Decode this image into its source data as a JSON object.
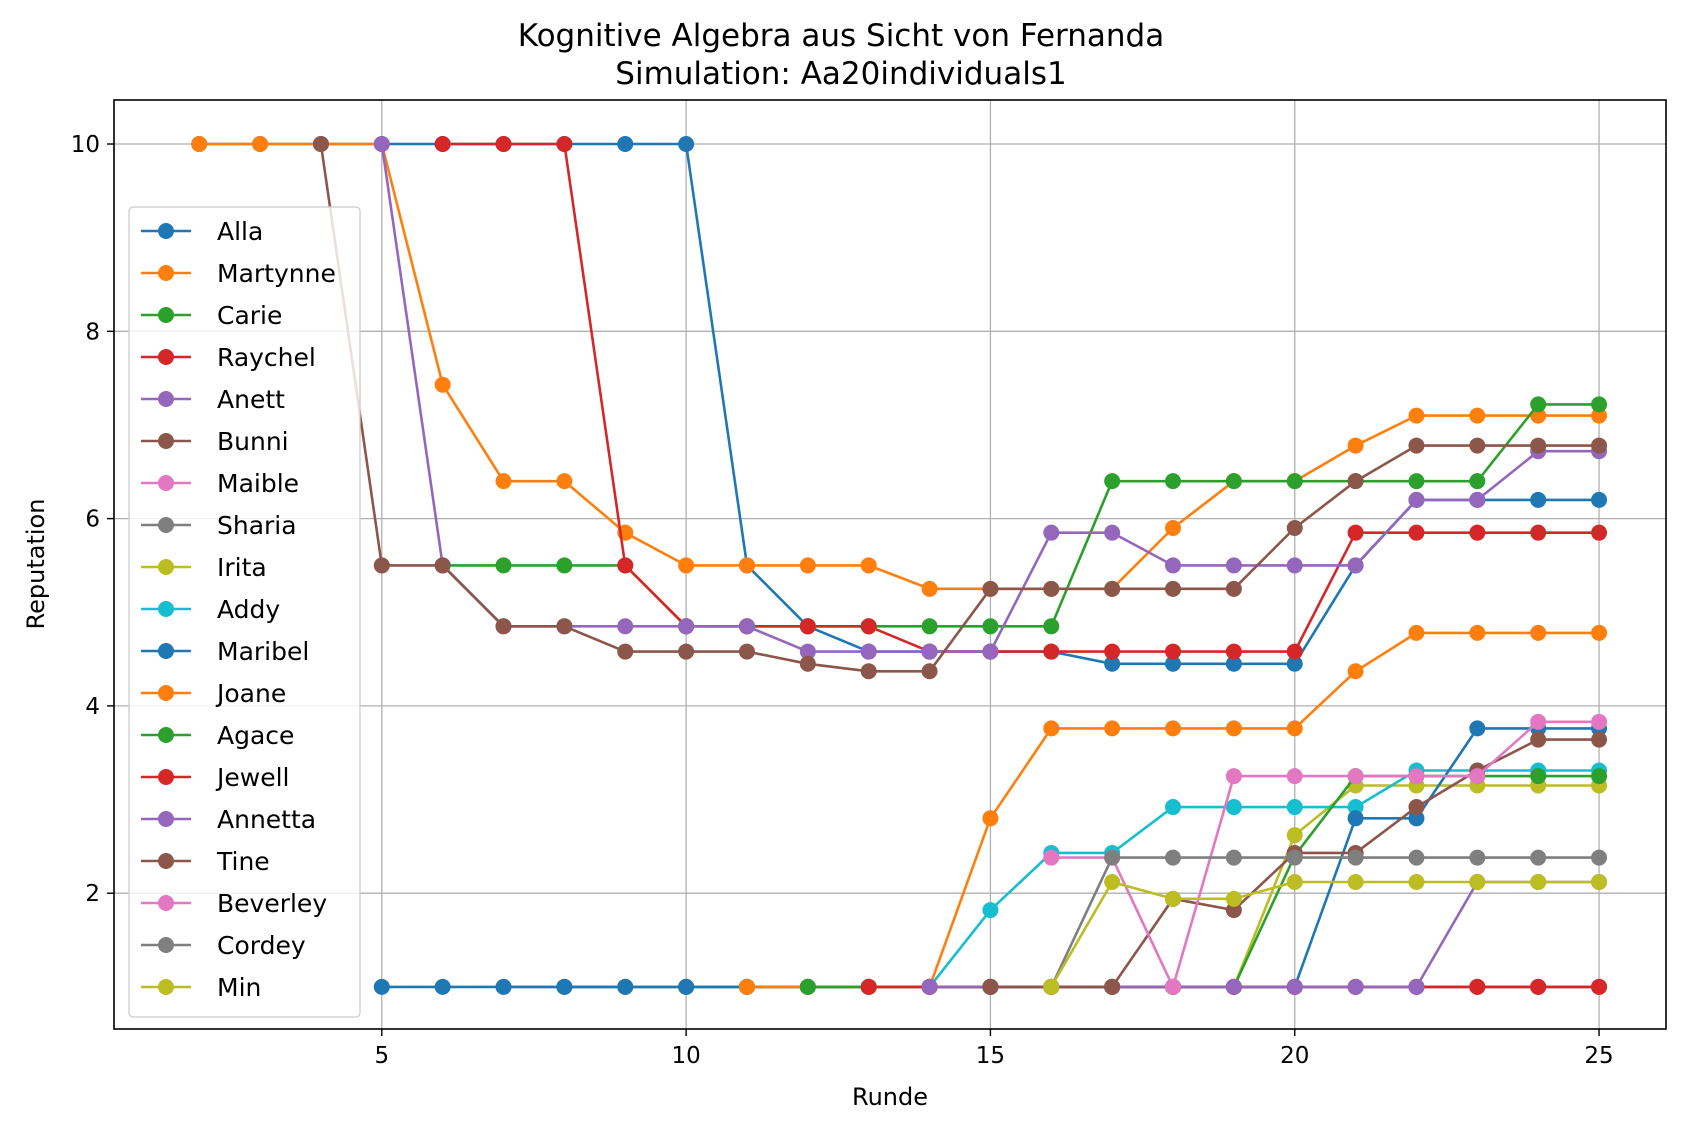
{
  "chart_data": {
    "type": "line",
    "title": "Kognitive Algebra aus Sicht von Fernanda",
    "subtitle": "Simulation: Aa20individuals1",
    "xlabel": "Runde",
    "ylabel": "Reputation",
    "xlim": [
      0.6,
      26.1
    ],
    "ylim": [
      0.55,
      10.47
    ],
    "xticks": [
      5,
      10,
      15,
      20,
      25
    ],
    "yticks": [
      2,
      4,
      6,
      8,
      10
    ],
    "grid": true,
    "legend_position": "left",
    "series": [
      {
        "name": "Alla",
        "color": "#1f77b4",
        "x": [
          2,
          3,
          4,
          5,
          6,
          7,
          8,
          9,
          10,
          11,
          12,
          13,
          14,
          15,
          16,
          17,
          18,
          19,
          20,
          21,
          22,
          23,
          24,
          25
        ],
        "values": [
          10,
          10,
          10,
          10,
          10,
          10,
          10,
          10,
          10,
          5.5,
          4.85,
          4.58,
          4.58,
          4.58,
          4.58,
          4.45,
          4.45,
          4.45,
          4.45,
          5.5,
          6.2,
          6.2,
          6.2,
          6.2
        ]
      },
      {
        "name": "Martynne",
        "color": "#ff7f0e",
        "x": [
          2,
          3,
          4,
          5,
          6,
          7,
          8,
          9,
          10,
          11,
          12,
          13,
          14,
          15,
          16,
          17,
          18,
          19,
          20,
          21,
          22,
          23,
          24,
          25
        ],
        "values": [
          10,
          10,
          10,
          10,
          7.43,
          6.4,
          6.4,
          5.85,
          5.5,
          5.5,
          5.5,
          5.5,
          5.25,
          5.25,
          5.25,
          5.25,
          5.9,
          6.4,
          6.4,
          6.78,
          7.1,
          7.1,
          7.1,
          7.1
        ]
      },
      {
        "name": "Carie",
        "color": "#2ca02c",
        "x": [
          6,
          7,
          8,
          9,
          10,
          11,
          12,
          13,
          14,
          15,
          16,
          17,
          18,
          19,
          20,
          21,
          22,
          23,
          24,
          25
        ],
        "values": [
          5.5,
          5.5,
          5.5,
          5.5,
          4.85,
          4.85,
          4.85,
          4.85,
          4.85,
          4.85,
          4.85,
          6.4,
          6.4,
          6.4,
          6.4,
          6.4,
          6.4,
          6.4,
          7.22,
          7.22
        ]
      },
      {
        "name": "Raychel",
        "color": "#d62728",
        "x": [
          6,
          7,
          8,
          9,
          10,
          11,
          12,
          13,
          14,
          15,
          16,
          17,
          18,
          19,
          20,
          21,
          22,
          23,
          24,
          25
        ],
        "values": [
          10,
          10,
          10,
          5.5,
          4.85,
          4.85,
          4.85,
          4.85,
          4.58,
          4.58,
          4.58,
          4.58,
          4.58,
          4.58,
          4.58,
          5.85,
          5.85,
          5.85,
          5.85,
          5.85
        ]
      },
      {
        "name": "Anett",
        "color": "#9467bd",
        "x": [
          5,
          6,
          7,
          8,
          9,
          10,
          11,
          12,
          13,
          14,
          15,
          16,
          17,
          18,
          19,
          20,
          21,
          22,
          23,
          24,
          25
        ],
        "values": [
          10,
          5.5,
          4.85,
          4.85,
          4.85,
          4.85,
          4.85,
          4.58,
          4.58,
          4.58,
          4.58,
          5.85,
          5.85,
          5.5,
          5.5,
          5.5,
          5.5,
          6.2,
          6.2,
          6.72,
          6.72
        ]
      },
      {
        "name": "Bunni",
        "color": "#8c564b",
        "x": [
          4,
          5,
          6,
          7,
          8,
          9,
          10,
          11,
          12,
          13,
          14,
          15,
          16,
          17,
          18,
          19,
          20,
          21,
          22,
          23,
          24,
          25
        ],
        "values": [
          10,
          5.5,
          5.5,
          4.85,
          4.85,
          4.58,
          4.58,
          4.58,
          4.45,
          4.37,
          4.37,
          5.25,
          5.25,
          5.25,
          5.25,
          5.25,
          5.9,
          6.4,
          6.78,
          6.78,
          6.78,
          6.78
        ]
      },
      {
        "name": "Maible",
        "color": "#e377c2",
        "x": [
          7,
          8,
          9,
          10,
          11,
          12,
          13,
          14,
          15,
          16,
          17,
          18,
          19,
          20,
          21,
          22,
          23,
          24,
          25
        ],
        "values": [
          1,
          1,
          1,
          1,
          1,
          1,
          1,
          1,
          1,
          1,
          1,
          1,
          1,
          1,
          1,
          1,
          1,
          1,
          1
        ]
      },
      {
        "name": "Sharia",
        "color": "#7f7f7f",
        "x": [
          8,
          9,
          10,
          11,
          12,
          13,
          14,
          15,
          16,
          17,
          18,
          19,
          20,
          21,
          22,
          23,
          24,
          25
        ],
        "values": [
          1,
          1,
          1,
          1,
          1,
          1,
          1,
          1,
          1,
          1,
          1,
          1,
          1,
          1,
          1,
          1,
          1,
          1
        ]
      },
      {
        "name": "Irita",
        "color": "#bcbd22",
        "x": [
          9,
          10,
          11,
          12,
          13,
          14,
          15,
          16,
          17,
          18,
          19,
          20,
          21,
          22,
          23,
          24,
          25
        ],
        "values": [
          1,
          1,
          1,
          1,
          1,
          1,
          1,
          1,
          1,
          1,
          1,
          2.62,
          3.15,
          3.15,
          3.15,
          3.15,
          3.15
        ]
      },
      {
        "name": "Addy",
        "color": "#17becf",
        "x": [
          10,
          11,
          12,
          13,
          14,
          15,
          16,
          17,
          18,
          19,
          20,
          21,
          22,
          23,
          24,
          25
        ],
        "values": [
          1,
          1,
          1,
          1,
          1,
          1.82,
          2.43,
          2.43,
          2.92,
          2.92,
          2.92,
          2.92,
          3.31,
          3.31,
          3.31,
          3.31
        ]
      },
      {
        "name": "Maribel",
        "color": "#1f77b4",
        "x": [
          5,
          6,
          7,
          8,
          9,
          10,
          11,
          12,
          13,
          14,
          15,
          16,
          17,
          18,
          19,
          20,
          21,
          22,
          23,
          24,
          25
        ],
        "values": [
          1,
          1,
          1,
          1,
          1,
          1,
          1,
          1,
          1,
          1,
          1,
          1,
          1,
          1,
          1,
          1,
          2.8,
          2.8,
          3.76,
          3.76,
          3.76
        ]
      },
      {
        "name": "Joane",
        "color": "#ff7f0e",
        "x": [
          11,
          12,
          13,
          14,
          15,
          16,
          17,
          18,
          19,
          20,
          21,
          22,
          23,
          24,
          25
        ],
        "values": [
          1,
          1,
          1,
          1,
          2.8,
          3.76,
          3.76,
          3.76,
          3.76,
          3.76,
          4.37,
          4.78,
          4.78,
          4.78,
          4.78
        ]
      },
      {
        "name": "Agace",
        "color": "#2ca02c",
        "x": [
          12,
          13,
          14,
          15,
          16,
          17,
          18,
          19,
          20,
          21,
          22,
          23,
          24,
          25
        ],
        "values": [
          1,
          1,
          1,
          1,
          1,
          1,
          1,
          1,
          2.4,
          3.25,
          3.25,
          3.25,
          3.25,
          3.25
        ]
      },
      {
        "name": "Jewell",
        "color": "#d62728",
        "x": [
          13,
          14,
          15,
          16,
          17,
          18,
          19,
          20,
          21,
          22,
          23,
          24,
          25
        ],
        "values": [
          1,
          1,
          1,
          1,
          1,
          1,
          1,
          1,
          1,
          1,
          1,
          1,
          1
        ]
      },
      {
        "name": "Annetta",
        "color": "#9467bd",
        "x": [
          14,
          15,
          16,
          17,
          18,
          19,
          20,
          21,
          22,
          23,
          24,
          25
        ],
        "values": [
          1,
          1,
          1,
          1,
          1,
          1,
          1,
          1,
          1,
          2.12,
          2.12,
          2.12
        ]
      },
      {
        "name": "Tine",
        "color": "#8c564b",
        "x": [
          15,
          16,
          17,
          18,
          19,
          20,
          21,
          22,
          23,
          24,
          25
        ],
        "values": [
          1,
          1,
          1,
          1.94,
          1.82,
          2.43,
          2.43,
          2.92,
          3.31,
          3.64,
          3.64
        ]
      },
      {
        "name": "Beverley",
        "color": "#e377c2",
        "x": [
          16,
          17,
          18,
          19,
          20,
          21,
          22,
          23,
          24,
          25
        ],
        "values": [
          2.38,
          2.38,
          1,
          3.25,
          3.25,
          3.25,
          3.25,
          3.25,
          3.83,
          3.83
        ]
      },
      {
        "name": "Cordey",
        "color": "#7f7f7f",
        "x": [
          16,
          17,
          18,
          19,
          20,
          21,
          22,
          23,
          24,
          25
        ],
        "values": [
          1,
          2.38,
          2.38,
          2.38,
          2.38,
          2.38,
          2.38,
          2.38,
          2.38,
          2.38
        ]
      },
      {
        "name": "Min",
        "color": "#bcbd22",
        "x": [
          16,
          17,
          18,
          19,
          20,
          21,
          22,
          23,
          24,
          25
        ],
        "values": [
          1,
          2.12,
          1.94,
          1.94,
          2.12,
          2.12,
          2.12,
          2.12,
          2.12,
          2.12
        ]
      }
    ]
  }
}
